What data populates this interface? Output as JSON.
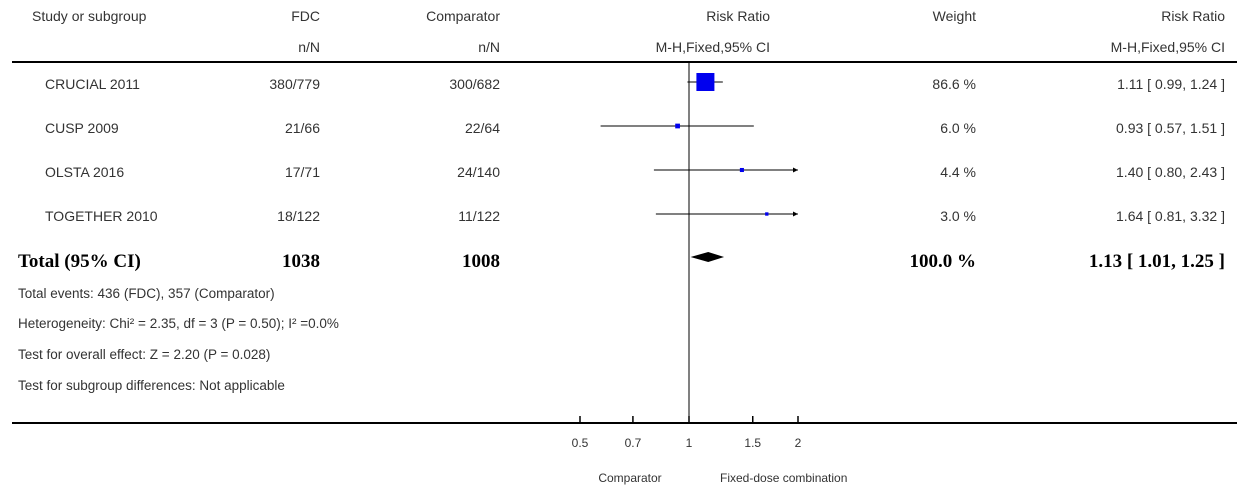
{
  "header": {
    "study_col": "Study or subgroup",
    "fdc_col": "FDC",
    "comp_col": "Comparator",
    "rr_col": "Risk Ratio",
    "weight_col": "Weight",
    "rr_val_col": "Risk Ratio",
    "fdc_sub": "n/N",
    "comp_sub": "n/N",
    "rr_sub": "M-H,Fixed,95% CI",
    "rr_val_sub": "M-H,Fixed,95% CI"
  },
  "studies": [
    {
      "name": "CRUCIAL 2011",
      "fdc": "380/779",
      "comp": "300/682",
      "weight": "86.6 %",
      "ci_text": "1.11 [ 0.99, 1.24 ]"
    },
    {
      "name": "CUSP 2009",
      "fdc": "21/66",
      "comp": "22/64",
      "weight": "6.0 %",
      "ci_text": "0.93 [ 0.57, 1.51 ]"
    },
    {
      "name": "OLSTA 2016",
      "fdc": "17/71",
      "comp": "24/140",
      "weight": "4.4 %",
      "ci_text": "1.40 [ 0.80, 2.43 ]"
    },
    {
      "name": "TOGETHER 2010",
      "fdc": "18/122",
      "comp": "11/122",
      "weight": "3.0 %",
      "ci_text": "1.64 [ 0.81, 3.32 ]"
    }
  ],
  "total": {
    "label": "Total (95% CI)",
    "fdc": "1038",
    "comp": "1008",
    "weight": "100.0 %",
    "ci_text": "1.13 [ 1.01, 1.25 ]"
  },
  "notes": {
    "events": "Total events: 436 (FDC), 357 (Comparator)",
    "heterogeneity": "Heterogeneity: Chi² = 2.35, df = 3 (P = 0.50); I² =0.0%",
    "overall": "Test for overall effect: Z = 2.20 (P = 0.028)",
    "subgroup": "Test for subgroup differences: Not applicable"
  },
  "axis": {
    "left_label": "Comparator",
    "right_label": "Fixed-dose combination"
  },
  "colors": {
    "marker": "#0000ee",
    "line": "#000000"
  },
  "chart_data": {
    "type": "forest",
    "scale": "log",
    "xlim": [
      0.5,
      2
    ],
    "ticks": [
      {
        "value": 0.5,
        "label": "0.5"
      },
      {
        "value": 0.7,
        "label": "0.7"
      },
      {
        "value": 1,
        "label": "1"
      },
      {
        "value": 1.5,
        "label": "1.5"
      },
      {
        "value": 2,
        "label": "2"
      }
    ],
    "studies": [
      {
        "name": "CRUCIAL 2011",
        "rr": 1.11,
        "lo": 0.99,
        "hi": 1.24,
        "weight": 86.6
      },
      {
        "name": "CUSP 2009",
        "rr": 0.93,
        "lo": 0.57,
        "hi": 1.51,
        "weight": 6.0
      },
      {
        "name": "OLSTA 2016",
        "rr": 1.4,
        "lo": 0.8,
        "hi": 2.43,
        "weight": 4.4
      },
      {
        "name": "TOGETHER 2010",
        "rr": 1.64,
        "lo": 0.81,
        "hi": 3.32,
        "weight": 3.0
      }
    ],
    "pooled": {
      "rr": 1.13,
      "lo": 1.01,
      "hi": 1.25
    }
  }
}
